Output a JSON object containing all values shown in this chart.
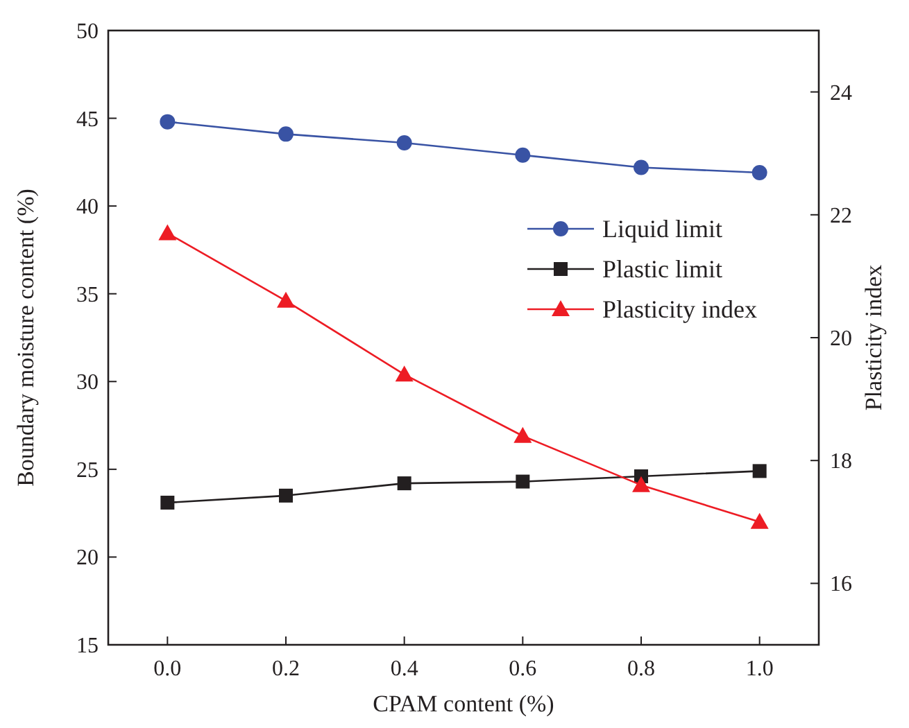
{
  "chart_data": {
    "type": "line",
    "xlabel": "CPAM content (%)",
    "ylabel": "Boundary moisture content (%)",
    "y2label": "Plasticity index",
    "x": [
      0.0,
      0.2,
      0.4,
      0.6,
      0.8,
      1.0
    ],
    "xlim": [
      -0.1,
      1.1
    ],
    "xticks": [
      {
        "value": 0,
        "label": "0.0"
      },
      0.2,
      0.4,
      0.6,
      0.8,
      {
        "value": 1,
        "label": "1.0"
      }
    ],
    "ylim": [
      15,
      50
    ],
    "yticks": [
      15,
      20,
      25,
      30,
      35,
      40,
      45,
      50
    ],
    "y2lim": [
      15,
      25
    ],
    "y2ticks": [
      16,
      18,
      20,
      22,
      24
    ],
    "series": [
      {
        "name": "Liquid limit",
        "color": "#3953a4",
        "marker": "circle",
        "values": [
          44.8,
          44.1,
          43.6,
          42.9,
          42.2,
          41.9
        ]
      },
      {
        "name": "Plastic limit",
        "color": "#231f20",
        "marker": "square",
        "values": [
          23.1,
          23.5,
          24.2,
          24.3,
          24.6,
          24.9
        ]
      },
      {
        "name": "Plasticity index",
        "color": "#ed1c24",
        "marker": "triangle",
        "axis": "y2",
        "values": [
          21.7,
          20.6,
          19.4,
          18.4,
          17.6,
          17.0
        ]
      }
    ],
    "legend": "right",
    "grid": false
  }
}
